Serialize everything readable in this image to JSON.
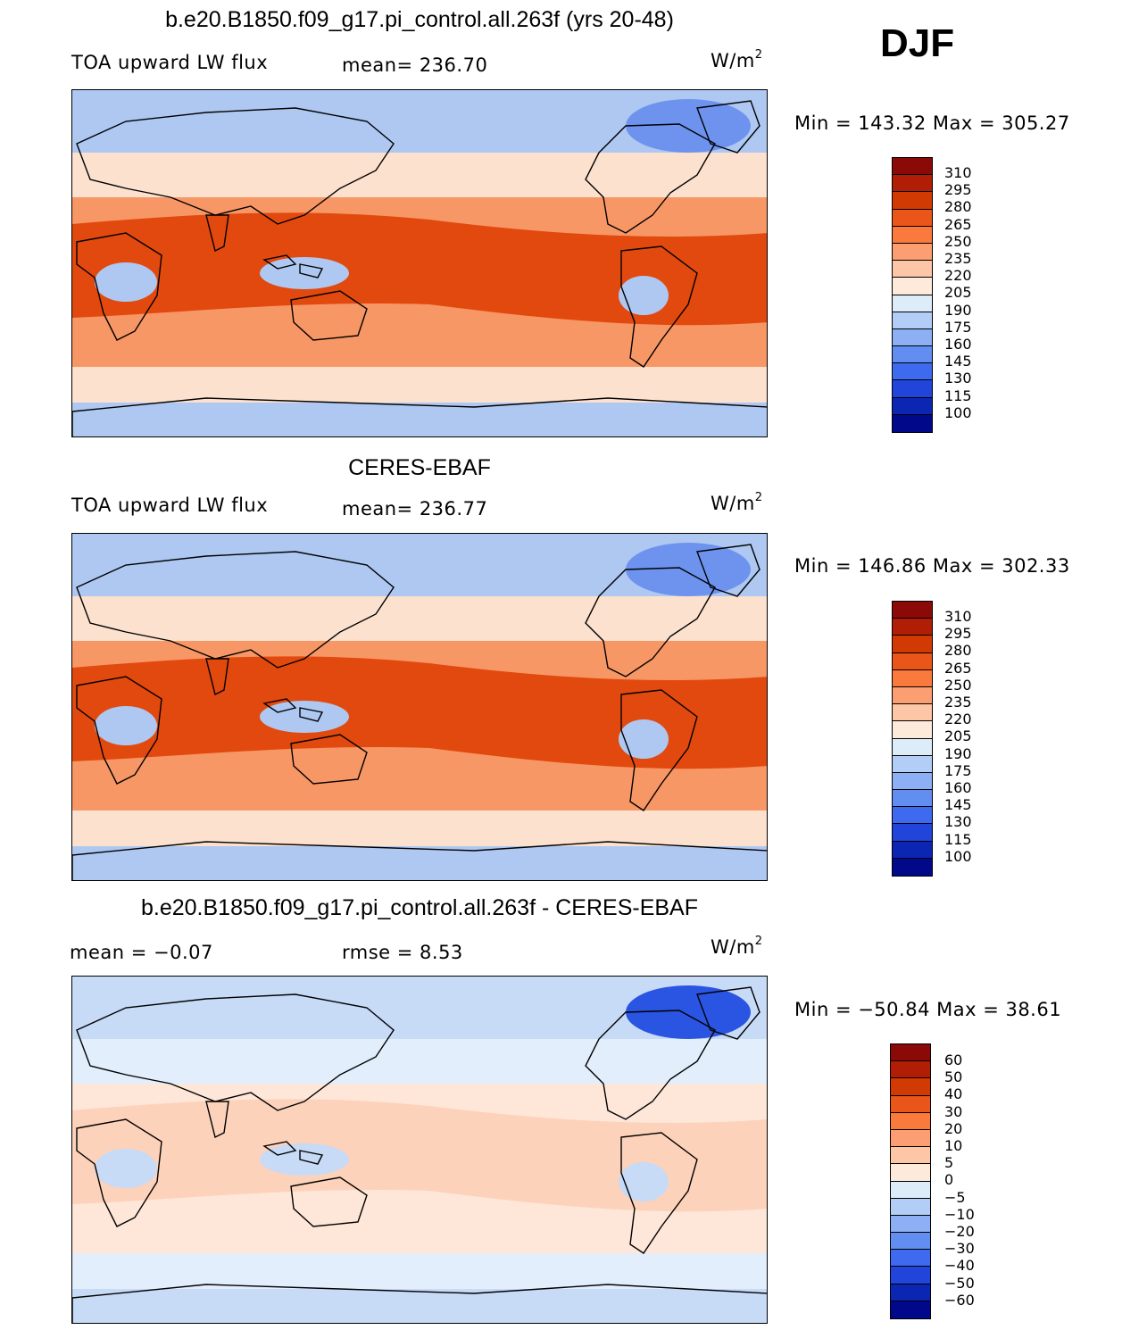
{
  "season": "DJF",
  "panels": [
    {
      "title": "b.e20.B1850.f09_g17.pi_control.all.263f (yrs 20-48)",
      "left_label": "TOA upward LW flux",
      "center_label": "mean= 236.70",
      "units": "W/m",
      "units_sup": "2",
      "minmax": "Min  =  143.32  Max  =  305.27",
      "colorbar": {
        "labels": [
          "310",
          "295",
          "280",
          "265",
          "250",
          "235",
          "220",
          "205",
          "190",
          "175",
          "160",
          "145",
          "130",
          "115",
          "100"
        ],
        "colors": [
          "#8b0a08",
          "#b21e05",
          "#d23a04",
          "#ea5519",
          "#f97a3c",
          "#fb9f73",
          "#fdc6a6",
          "#feeadb",
          "#dcecf9",
          "#b3cef6",
          "#8daff3",
          "#638ef1",
          "#3d6aee",
          "#2144db",
          "#0c26b4",
          "#01098a"
        ]
      },
      "map_fields": {
        "tropics": "#e2490e",
        "subtropics": "#f79765",
        "midlat": "#fce1cf",
        "polar": "#aec8f2",
        "cold_spot": "#6e93ef"
      }
    },
    {
      "title": "CERES-EBAF",
      "left_label": "TOA upward LW flux",
      "center_label": "mean= 236.77",
      "units": "W/m",
      "units_sup": "2",
      "minmax": "Min  =  146.86  Max  =  302.33",
      "colorbar": {
        "labels": [
          "310",
          "295",
          "280",
          "265",
          "250",
          "235",
          "220",
          "205",
          "190",
          "175",
          "160",
          "145",
          "130",
          "115",
          "100"
        ],
        "colors": [
          "#8b0a08",
          "#b21e05",
          "#d23a04",
          "#ea5519",
          "#f97a3c",
          "#fb9f73",
          "#fdc6a6",
          "#feeadb",
          "#dcecf9",
          "#b3cef6",
          "#8daff3",
          "#638ef1",
          "#3d6aee",
          "#2144db",
          "#0c26b4",
          "#01098a"
        ]
      },
      "map_fields": {
        "tropics": "#e2490e",
        "subtropics": "#f79765",
        "midlat": "#fce1cf",
        "polar": "#aec8f2",
        "cold_spot": "#6e93ef"
      }
    },
    {
      "title": "b.e20.B1850.f09_g17.pi_control.all.263f - CERES-EBAF",
      "left_label": "mean =   −0.07",
      "center_label": "rmse =    8.53",
      "units": "W/m",
      "units_sup": "2",
      "minmax": "Min  =  −50.84  Max  =    38.61",
      "colorbar": {
        "labels": [
          "60",
          "50",
          "40",
          "30",
          "20",
          "10",
          "5",
          "0",
          "−5",
          "−10",
          "−20",
          "−30",
          "−40",
          "−50",
          "−60"
        ],
        "colors": [
          "#8b0a08",
          "#b21e05",
          "#d23a04",
          "#ea5519",
          "#f97a3c",
          "#fb9f73",
          "#fdc6a6",
          "#feeadb",
          "#dcecf9",
          "#b3cef6",
          "#8daff3",
          "#638ef1",
          "#3d6aee",
          "#2144db",
          "#0c26b4",
          "#01098a"
        ]
      },
      "map_fields": {
        "tropics": "#fdd2bb",
        "subtropics": "#fee6d8",
        "midlat": "#e2eefb",
        "polar": "#c7daf6",
        "cold_spot": "#2a55e2"
      }
    }
  ]
}
